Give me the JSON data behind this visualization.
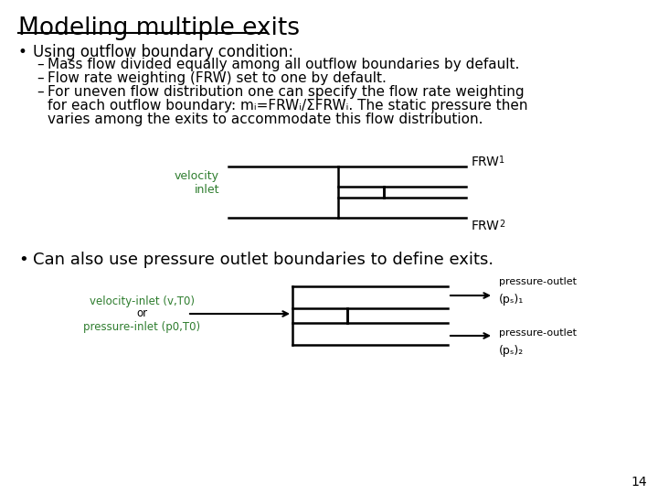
{
  "title": "Modeling multiple exits",
  "bg_color": "#ffffff",
  "title_color": "#000000",
  "title_fontsize": 19,
  "bullet1_header": "Using outflow boundary condition:",
  "bullet1_sub1": "Mass flow divided equally among all outflow boundaries by default.",
  "bullet1_sub2": "Flow rate weighting (FRW) set to one by default.",
  "bullet1_sub3a": "For uneven flow distribution one can specify the flow rate weighting",
  "bullet1_sub3b": "for each outflow boundary: mᵢ=FRWᵢ/ΣFRWᵢ. The static pressure then",
  "bullet1_sub3c": "varies among the exits to accommodate this flow distribution.",
  "bullet2_header": "Can also use pressure outlet boundaries to define exits.",
  "frw1_label": "FRW",
  "frw1_sub": "1",
  "frw2_label": "FRW",
  "frw2_sub": "2",
  "velocity_inlet_label": "velocity\ninlet",
  "velocity_inlet_color": "#2e7d2e",
  "vi_label_1": "velocity-inlet (v,T",
  "vi_label_sub": "0",
  "vi_label_end": ")",
  "or_label": "or",
  "pi_label_1": "pressure-inlet (p",
  "pi_label_sub1": "0",
  "pi_label_mid": ",T",
  "pi_label_sub2": "0",
  "pi_label_end": ")",
  "inlet_label_color": "#2e7d2e",
  "po1_line1": "pressure-outlet",
  "po1_line2": "(pₛ)₁",
  "po2_line1": "pressure-outlet",
  "po2_line2": "(pₛ)₂",
  "page_num": "14",
  "line_color": "#000000",
  "text_color": "#000000"
}
